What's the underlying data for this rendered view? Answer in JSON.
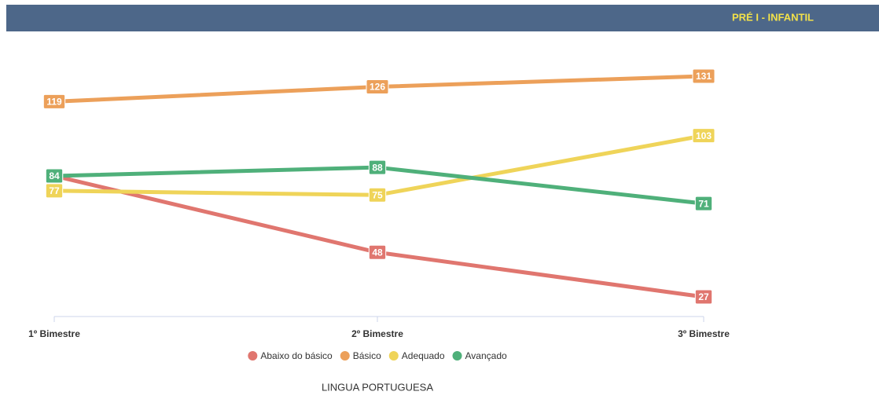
{
  "header": {
    "title": "PRÉ I - INFANTIL"
  },
  "chart_data": {
    "type": "line",
    "categories": [
      "1º Bimestre",
      "2º Bimestre",
      "3º Bimestre"
    ],
    "series": [
      {
        "name": "Abaixo do básico",
        "color": "#e0766f",
        "values": [
          84,
          48,
          27
        ]
      },
      {
        "name": "Básico",
        "color": "#eca05a",
        "values": [
          119,
          126,
          131
        ]
      },
      {
        "name": "Adequado",
        "color": "#efd459",
        "values": [
          77,
          75,
          103
        ]
      },
      {
        "name": "Avançado",
        "color": "#4fb07a",
        "values": [
          84,
          88,
          71
        ]
      }
    ],
    "xlabel": "LINGUA PORTUGUESA"
  }
}
